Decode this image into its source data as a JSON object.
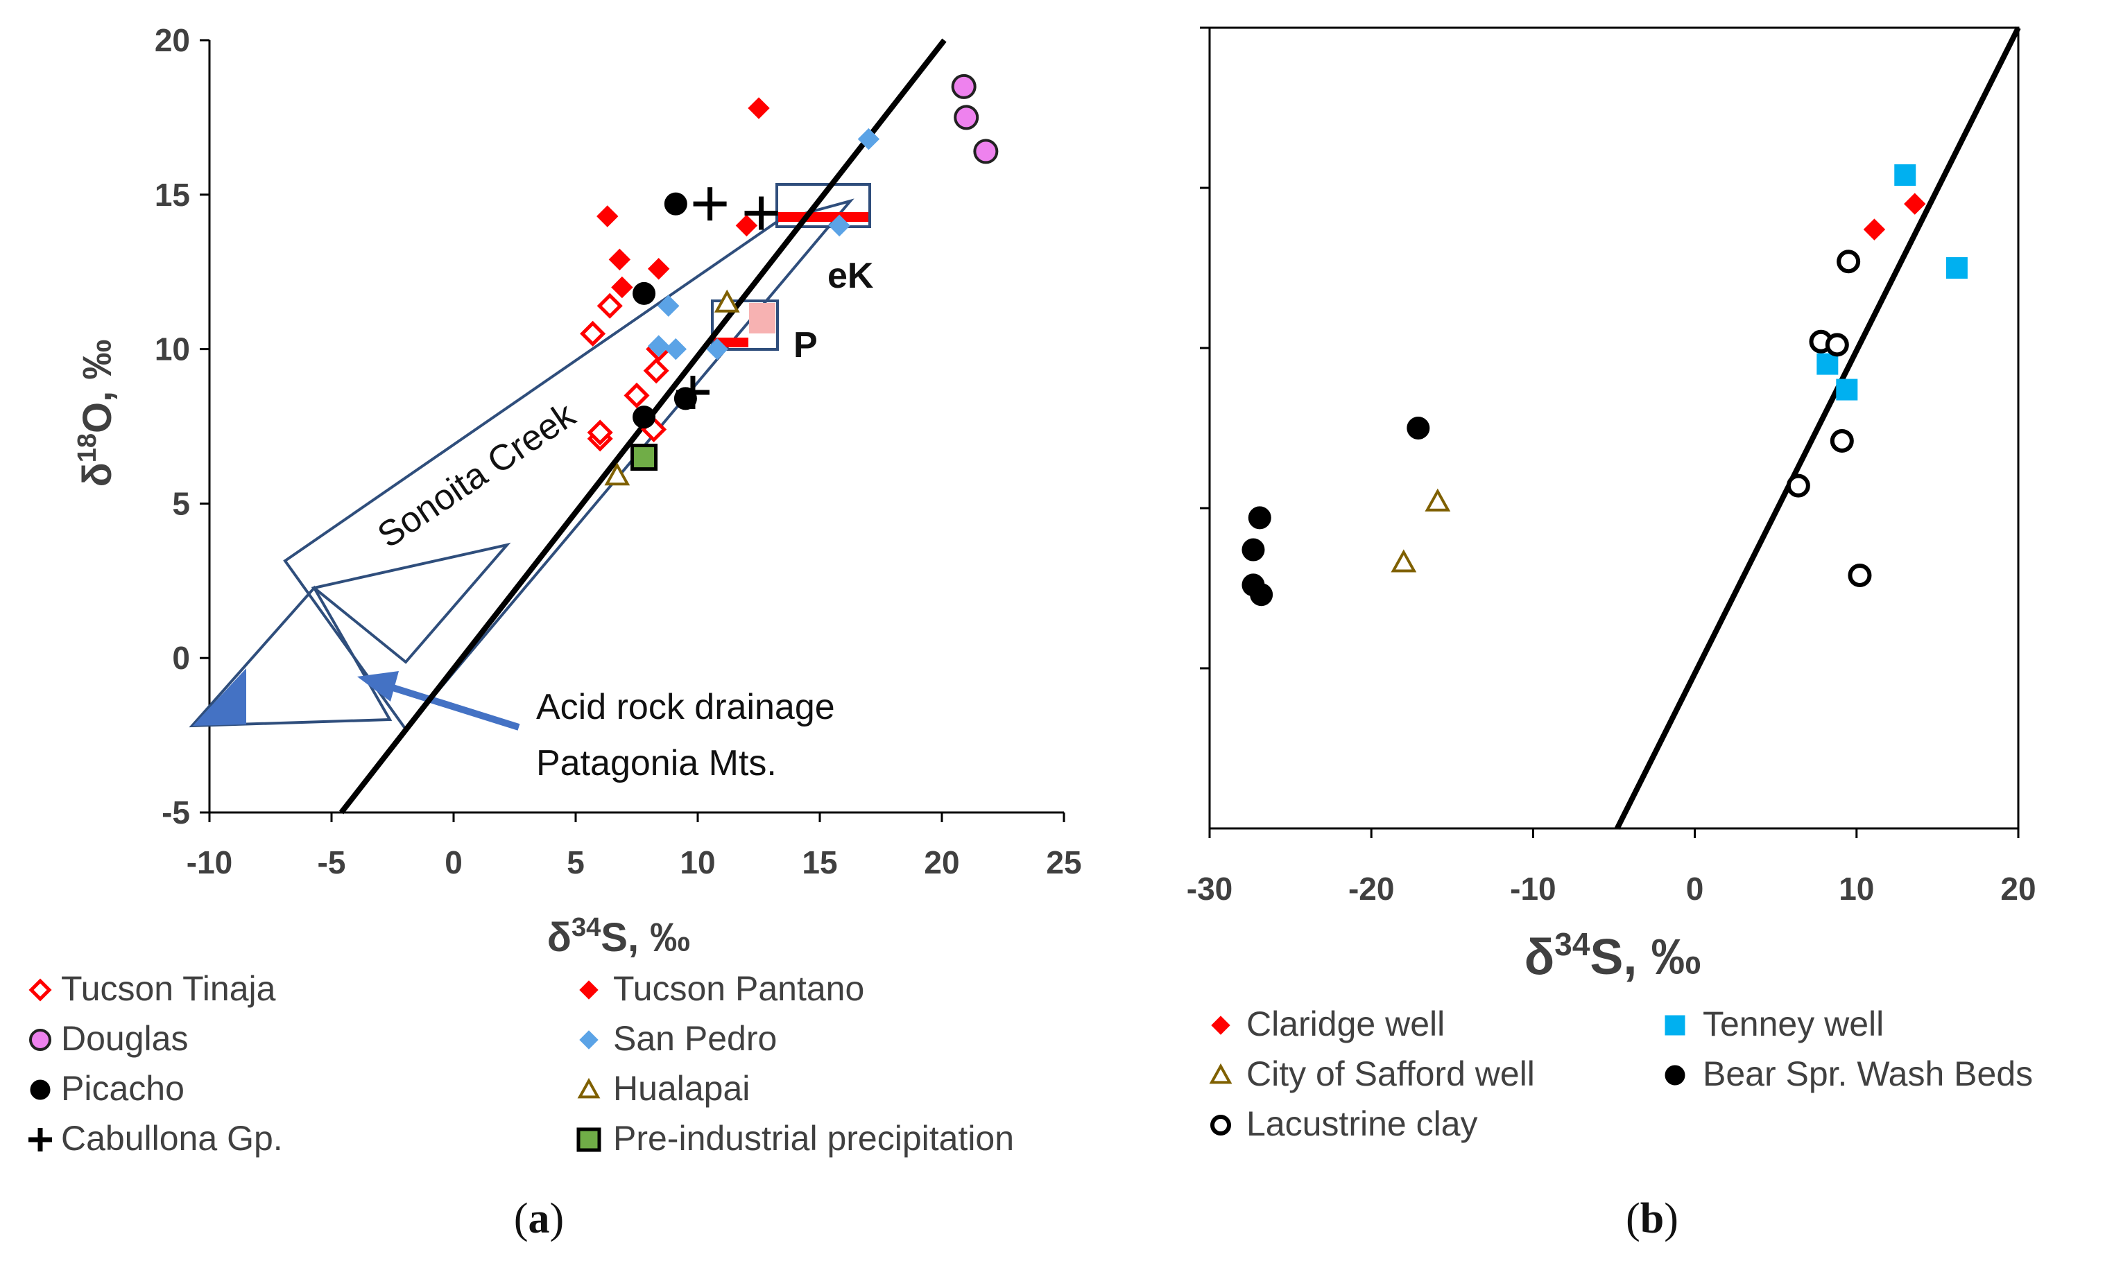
{
  "panel_a": {
    "caption": "a",
    "y_label_delta": "δ",
    "y_label_sup": "18",
    "y_label_rest": "O, ‰",
    "x_label_delta": "δ",
    "x_label_sup": "34",
    "x_label_rest": "S, ‰",
    "annotations": {
      "sonoita": "Sonoita Creek",
      "ek": "eK",
      "p": "P",
      "acid1": "Acid rock drainage",
      "acid2": "Patagonia Mts."
    },
    "legend": [
      "Tucson Tinaja",
      "Tucson Pantano",
      "Douglas",
      "San Pedro",
      "Picacho",
      "Hualapai",
      "Cabullona Gp.",
      "Pre-industrial precipitation"
    ]
  },
  "panel_b": {
    "caption": "b",
    "x_label_delta": "δ",
    "x_label_sup": "34",
    "x_label_rest": "S, ‰",
    "legend": [
      "Claridge well",
      "Tenney well",
      "City of Safford well",
      "Bear Spr. Wash Beds",
      "Lacustrine clay"
    ]
  },
  "chart_data": [
    {
      "type": "scatter",
      "panel": "a",
      "title": "",
      "xlabel": "δ34S, ‰",
      "ylabel": "δ18O, ‰",
      "xlim": [
        -10,
        25
      ],
      "ylim": [
        -5,
        20
      ],
      "xticks": [
        "-10",
        "-5",
        "0",
        "5",
        "10",
        "15",
        "20",
        "25"
      ],
      "yticks": [
        "-5",
        "0",
        "5",
        "10",
        "15",
        "20"
      ],
      "reference_line": {
        "x": [
          -4.6,
          20.1
        ],
        "y": [
          -5,
          20
        ]
      },
      "series": [
        {
          "name": "Tucson Tinaja",
          "marker": "diamond-open",
          "color": "#ff0000",
          "x": [
            5.7,
            6.0,
            6.4,
            7.5,
            8.2,
            8.3,
            8.4,
            6.0
          ],
          "y": [
            10.5,
            7.1,
            11.4,
            8.5,
            7.4,
            9.3,
            10.0,
            7.3
          ]
        },
        {
          "name": "Tucson Pantano",
          "marker": "diamond",
          "color": "#ff0000",
          "x": [
            6.3,
            6.8,
            6.9,
            8.4,
            12.0,
            12.5
          ],
          "y": [
            14.3,
            12.9,
            12.0,
            12.6,
            14.0,
            17.8
          ]
        },
        {
          "name": "Douglas",
          "marker": "circle",
          "color": "#ee82ee",
          "x": [
            20.9,
            21.0,
            21.8
          ],
          "y": [
            18.5,
            17.5,
            16.4
          ]
        },
        {
          "name": "San Pedro",
          "marker": "diamond",
          "color": "#5ba3e6",
          "x": [
            8.4,
            8.8,
            9.1,
            10.8,
            15.8,
            17.0
          ],
          "y": [
            10.1,
            11.4,
            10.0,
            10.0,
            14.0,
            16.8
          ]
        },
        {
          "name": "Picacho",
          "marker": "circle",
          "color": "#000000",
          "x": [
            7.8,
            7.8,
            9.1,
            9.5
          ],
          "y": [
            11.8,
            7.8,
            14.7,
            8.4
          ]
        },
        {
          "name": "Hualapai",
          "marker": "triangle-open",
          "color": "#7f6000",
          "x": [
            6.7,
            11.2
          ],
          "y": [
            5.9,
            11.5
          ]
        },
        {
          "name": "Cabullona Gp.",
          "marker": "plus",
          "color": "#000000",
          "x": [
            10.5,
            12.6,
            9.8
          ],
          "y": [
            14.7,
            14.4,
            8.6
          ]
        },
        {
          "name": "Pre-industrial precipitation",
          "marker": "square",
          "color": "#70ad47",
          "x": [
            7.8
          ],
          "y": [
            6.5
          ]
        }
      ]
    },
    {
      "type": "scatter",
      "panel": "b",
      "title": "",
      "xlabel": "δ34S, ‰",
      "ylabel": "",
      "xlim": [
        -30,
        20
      ],
      "ylim": [
        -5,
        20
      ],
      "xticks": [
        "-30",
        "-20",
        "-10",
        "0",
        "10",
        "20"
      ],
      "reference_line": {
        "x": [
          -4.8,
          20.0
        ],
        "y": [
          -5,
          20
        ]
      },
      "series": [
        {
          "name": "Claridge well",
          "marker": "diamond",
          "color": "#ff0000",
          "x": [
            11.1,
            13.6
          ],
          "y": [
            13.7,
            14.5
          ]
        },
        {
          "name": "Tenney well",
          "marker": "square",
          "color": "#00b0f0",
          "x": [
            13.0,
            16.2,
            8.2,
            9.4
          ],
          "y": [
            15.4,
            12.5,
            9.5,
            8.7
          ]
        },
        {
          "name": "City of Safford well",
          "marker": "triangle-open",
          "color": "#7f6000",
          "x": [
            -15.9,
            -18.0
          ],
          "y": [
            5.2,
            3.3
          ]
        },
        {
          "name": "Bear Spr. Wash Beds",
          "marker": "circle",
          "color": "#000000",
          "x": [
            -17.1,
            -26.9,
            -27.3,
            -27.3,
            -26.8
          ],
          "y": [
            7.5,
            4.7,
            3.7,
            2.6,
            2.3
          ]
        },
        {
          "name": "Lacustrine clay",
          "marker": "circle-open",
          "color": "#000000",
          "x": [
            9.5,
            7.8,
            8.8,
            9.1,
            6.4,
            10.2
          ],
          "y": [
            12.7,
            10.2,
            10.1,
            7.1,
            5.7,
            2.9
          ]
        }
      ]
    }
  ]
}
